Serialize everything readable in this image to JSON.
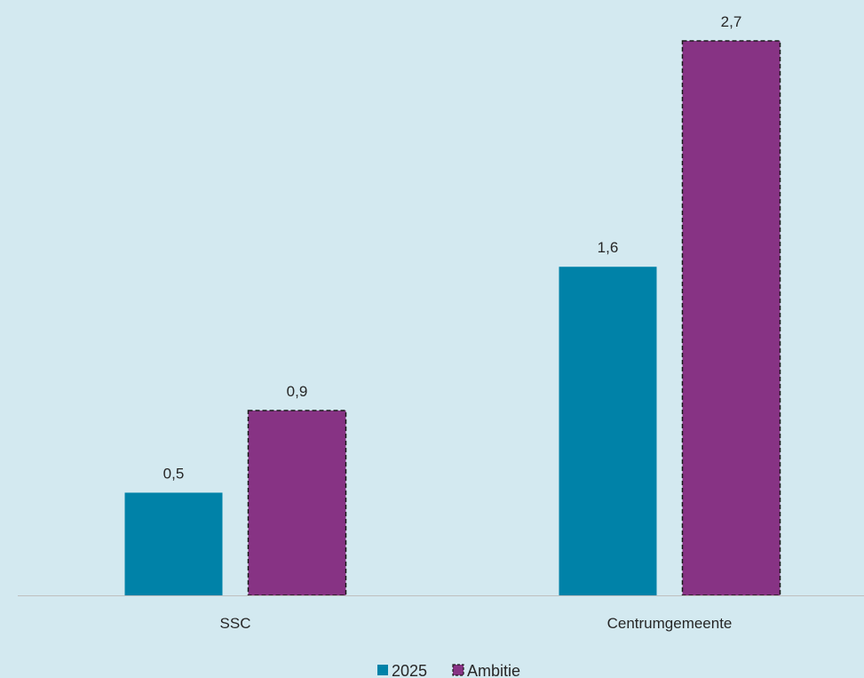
{
  "chart_data": {
    "type": "bar",
    "categories": [
      "SSC",
      "Centrumgemeente"
    ],
    "series": [
      {
        "name": "2025",
        "values": [
          0.5,
          1.6
        ],
        "labels": [
          "0,5",
          "1,6"
        ],
        "color": "#0082a8",
        "border": "none"
      },
      {
        "name": "Ambitie",
        "values": [
          0.9,
          2.7
        ],
        "labels": [
          "0,9",
          "2,7"
        ],
        "color": "#873384",
        "border": "dashed-black"
      }
    ],
    "ylim": [
      0,
      2.7
    ],
    "grid": false,
    "legend_position": "bottom",
    "axis_color": "#bfbfbf"
  }
}
